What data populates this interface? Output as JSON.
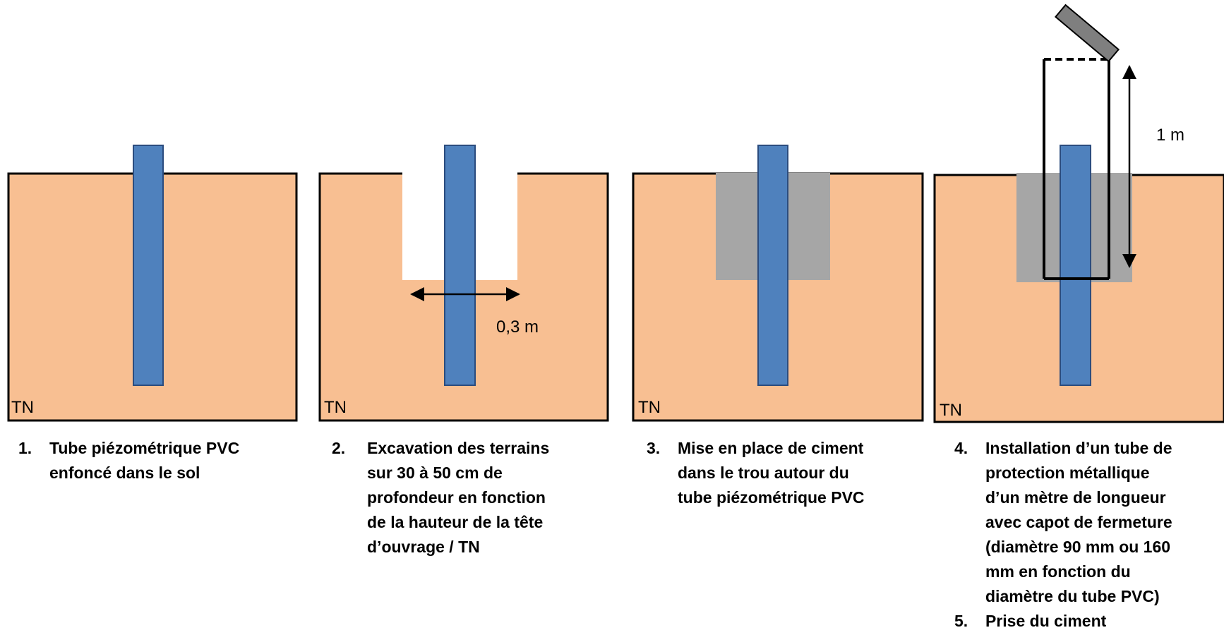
{
  "panels": [
    {
      "label": "TN"
    },
    {
      "label": "TN",
      "dimension": "0,3 m"
    },
    {
      "label": "TN"
    },
    {
      "label": "TN",
      "dimension": "1 m"
    }
  ],
  "steps": [
    {
      "number": "1.",
      "text": "Tube piézométrique PVC\nenfoncé dans le sol"
    },
    {
      "number": "2.",
      "text": "Excavation des terrains\nsur 30 à 50 cm de\nprofondeur en fonction\nde la hauteur de la tête\nd’ouvrage / TN"
    },
    {
      "number": "3.",
      "text": "Mise en place de ciment\ndans le trou autour du\ntube piézométrique PVC"
    },
    {
      "number": "4.",
      "text": "Installation d’un tube de\nprotection métallique\nd’un mètre de longueur\navec capot de fermeture\n(diamètre 90 mm ou 160\nmm en fonction du\ndiamètre du tube PVC)"
    },
    {
      "number": "5.",
      "text": "Prise du ciment"
    }
  ],
  "colors": {
    "soil": "#f8bf92",
    "tube": "#4f81bd",
    "cement": "#a6a6a6",
    "cap": "#7f7f7f"
  }
}
